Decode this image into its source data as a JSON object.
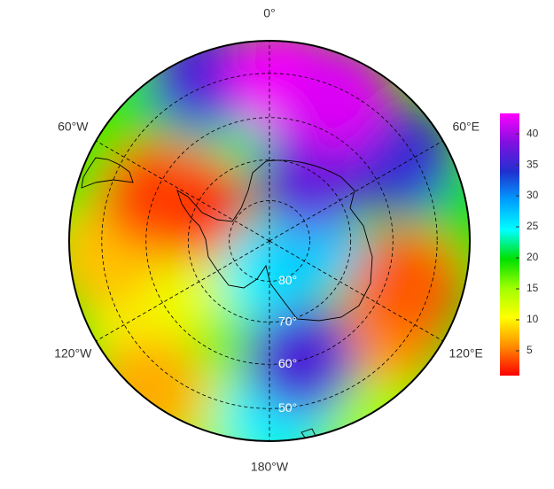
{
  "chart_data": {
    "type": "polar-map",
    "latlim": [
      -90,
      -43
    ],
    "meridians": [
      {
        "value": 0,
        "label": "0°"
      },
      {
        "value": 60,
        "label": "60°E"
      },
      {
        "value": 120,
        "label": "120°E"
      },
      {
        "value": 180,
        "label": "180°W"
      },
      {
        "value": -120,
        "label": "120°W"
      },
      {
        "value": -60,
        "label": "60°W"
      }
    ],
    "parallels": [
      {
        "value": -80,
        "label": "80°"
      },
      {
        "value": -70,
        "label": "70°"
      },
      {
        "value": -60,
        "label": "60°"
      },
      {
        "value": -50,
        "label": "50°"
      }
    ],
    "colorbar": {
      "lim": [
        1,
        43.3
      ],
      "ticks": [
        5,
        10,
        15,
        20,
        25,
        30,
        35,
        40
      ],
      "colors": [
        "#ff0000",
        "#ff8c00",
        "#ffff00",
        "#a0ff00",
        "#00e000",
        "#00ffff",
        "#00a0ff",
        "#2030d0",
        "#8010e0",
        "#ff00ff"
      ]
    },
    "field": [
      {
        "lon": -78,
        "lat": -46,
        "value": 18
      },
      {
        "lon": -53,
        "lat": -45,
        "value": 18
      },
      {
        "lon": 84,
        "lat": -48,
        "value": 20
      },
      {
        "lon": -145,
        "lat": -69,
        "value": 17
      },
      {
        "lon": 148,
        "lat": -45,
        "value": 15
      },
      {
        "lon": -160,
        "lat": -46,
        "value": 14
      },
      {
        "lon": -36,
        "lat": -53,
        "value": 20
      },
      {
        "lon": -18,
        "lat": -60,
        "value": 22
      },
      {
        "lon": -114,
        "lat": -75,
        "value": 12
      },
      {
        "lon": -124,
        "lat": -53,
        "value": 11
      },
      {
        "lon": -96,
        "lat": -51,
        "value": 8
      },
      {
        "lon": -141,
        "lat": -45,
        "value": 7
      },
      {
        "lon": 126,
        "lat": -54,
        "value": 6
      },
      {
        "lon": 171,
        "lat": -82,
        "value": 25
      },
      {
        "lon": 92,
        "lat": -80,
        "value": 27
      },
      {
        "lon": 178,
        "lat": -48,
        "value": 25
      },
      {
        "lon": -22,
        "lat": -48,
        "value": 36
      },
      {
        "lon": 58,
        "lat": -53,
        "value": 35
      },
      {
        "lon": 33,
        "lat": -71,
        "value": 37
      },
      {
        "lon": 165,
        "lat": -60,
        "value": 36
      },
      {
        "lon": 5,
        "lat": -51,
        "value": 43
      },
      {
        "lon": 25,
        "lat": -52,
        "value": 42
      },
      {
        "lon": -65,
        "lat": -69,
        "value": 2
      },
      {
        "lon": -68,
        "lat": -60,
        "value": 3
      },
      {
        "lon": 107,
        "lat": -55,
        "value": 4
      }
    ]
  }
}
